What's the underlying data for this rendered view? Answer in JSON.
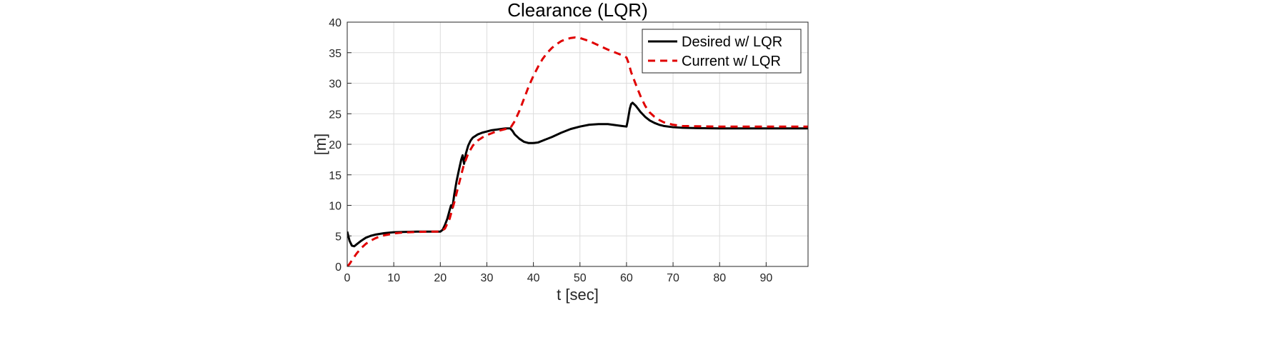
{
  "chart_data": {
    "type": "line",
    "title": "Clearance (LQR)",
    "xlabel": "t [sec]",
    "ylabel": "[m]",
    "xlim": [
      0,
      99
    ],
    "ylim": [
      0,
      40
    ],
    "x_ticks": [
      0,
      10,
      20,
      30,
      40,
      50,
      60,
      70,
      80,
      90
    ],
    "y_ticks": [
      0,
      5,
      10,
      15,
      20,
      25,
      30,
      35,
      40
    ],
    "x_tick_labels": [
      "0",
      "10",
      "20",
      "30",
      "40",
      "50",
      "60",
      "70",
      "80",
      "90"
    ],
    "y_tick_labels": [
      "0",
      "5",
      "10",
      "15",
      "20",
      "25",
      "30",
      "35",
      "40"
    ],
    "grid": true,
    "legend_position": "top-right",
    "series": [
      {
        "name": "Desired w/ LQR",
        "color": "#000000",
        "style": "solid",
        "points": [
          [
            0,
            5.7
          ],
          [
            0.5,
            4.2
          ],
          [
            1,
            3.4
          ],
          [
            1.5,
            3.3
          ],
          [
            2,
            3.6
          ],
          [
            3,
            4.2
          ],
          [
            4,
            4.7
          ],
          [
            5,
            5.0
          ],
          [
            6,
            5.2
          ],
          [
            8,
            5.45
          ],
          [
            10,
            5.6
          ],
          [
            12,
            5.65
          ],
          [
            15,
            5.7
          ],
          [
            18,
            5.7
          ],
          [
            20,
            5.7
          ],
          [
            20.5,
            6.0
          ],
          [
            21,
            6.8
          ],
          [
            21.5,
            7.8
          ],
          [
            22,
            9.2
          ],
          [
            22.3,
            10.0
          ],
          [
            22.6,
            9.6
          ],
          [
            23,
            11.8
          ],
          [
            23.5,
            14.0
          ],
          [
            24,
            15.8
          ],
          [
            24.5,
            17.5
          ],
          [
            24.8,
            18.2
          ],
          [
            25.1,
            16.8
          ],
          [
            25.5,
            18.5
          ],
          [
            26,
            19.8
          ],
          [
            26.5,
            20.6
          ],
          [
            27,
            21.1
          ],
          [
            28,
            21.6
          ],
          [
            29,
            21.9
          ],
          [
            30,
            22.1
          ],
          [
            31,
            22.3
          ],
          [
            32,
            22.4
          ],
          [
            33,
            22.5
          ],
          [
            34,
            22.6
          ],
          [
            35,
            22.6
          ],
          [
            35.5,
            22.2
          ],
          [
            36,
            21.6
          ],
          [
            37,
            20.9
          ],
          [
            38,
            20.4
          ],
          [
            39,
            20.2
          ],
          [
            40,
            20.2
          ],
          [
            41,
            20.3
          ],
          [
            42,
            20.6
          ],
          [
            44,
            21.2
          ],
          [
            46,
            21.9
          ],
          [
            48,
            22.5
          ],
          [
            50,
            22.9
          ],
          [
            52,
            23.2
          ],
          [
            54,
            23.3
          ],
          [
            56,
            23.3
          ],
          [
            58,
            23.1
          ],
          [
            59,
            23.0
          ],
          [
            60,
            22.9
          ],
          [
            60.3,
            24.0
          ],
          [
            60.7,
            25.8
          ],
          [
            61,
            26.6
          ],
          [
            61.3,
            26.8
          ],
          [
            62,
            26.3
          ],
          [
            63,
            25.3
          ],
          [
            64,
            24.5
          ],
          [
            65,
            23.9
          ],
          [
            66,
            23.5
          ],
          [
            67,
            23.2
          ],
          [
            68,
            23.0
          ],
          [
            70,
            22.8
          ],
          [
            72,
            22.7
          ],
          [
            75,
            22.65
          ],
          [
            80,
            22.6
          ],
          [
            85,
            22.6
          ],
          [
            90,
            22.6
          ],
          [
            95,
            22.6
          ],
          [
            99,
            22.6
          ]
        ]
      },
      {
        "name": "Current w/ LQR",
        "color": "#e00000",
        "style": "dashed",
        "points": [
          [
            0,
            0.0
          ],
          [
            0.5,
            0.4
          ],
          [
            1,
            1.0
          ],
          [
            2,
            2.1
          ],
          [
            3,
            3.0
          ],
          [
            4,
            3.7
          ],
          [
            5,
            4.2
          ],
          [
            6,
            4.6
          ],
          [
            7,
            4.9
          ],
          [
            8,
            5.1
          ],
          [
            10,
            5.4
          ],
          [
            12,
            5.55
          ],
          [
            15,
            5.65
          ],
          [
            18,
            5.7
          ],
          [
            20,
            5.7
          ],
          [
            21,
            6.2
          ],
          [
            22,
            7.8
          ],
          [
            23,
            10.5
          ],
          [
            24,
            13.5
          ],
          [
            25,
            16.5
          ],
          [
            26,
            18.5
          ],
          [
            27,
            19.8
          ],
          [
            28,
            20.6
          ],
          [
            29,
            21.1
          ],
          [
            30,
            21.5
          ],
          [
            31,
            21.8
          ],
          [
            32,
            22.1
          ],
          [
            33,
            22.3
          ],
          [
            34,
            22.5
          ],
          [
            35,
            22.6
          ],
          [
            36,
            23.8
          ],
          [
            37,
            25.5
          ],
          [
            38,
            27.5
          ],
          [
            39,
            29.5
          ],
          [
            40,
            31.2
          ],
          [
            41,
            32.7
          ],
          [
            42,
            34.0
          ],
          [
            43,
            35.0
          ],
          [
            44,
            35.8
          ],
          [
            45,
            36.4
          ],
          [
            46,
            36.9
          ],
          [
            47,
            37.2
          ],
          [
            48,
            37.4
          ],
          [
            49,
            37.5
          ],
          [
            50,
            37.4
          ],
          [
            52,
            36.9
          ],
          [
            54,
            36.2
          ],
          [
            56,
            35.5
          ],
          [
            58,
            34.9
          ],
          [
            59,
            34.6
          ],
          [
            60,
            34.2
          ],
          [
            60.5,
            33.2
          ],
          [
            61,
            31.8
          ],
          [
            62,
            29.8
          ],
          [
            63,
            27.9
          ],
          [
            64,
            26.3
          ],
          [
            65,
            25.2
          ],
          [
            66,
            24.5
          ],
          [
            67,
            24.0
          ],
          [
            68,
            23.6
          ],
          [
            69,
            23.4
          ],
          [
            70,
            23.2
          ],
          [
            72,
            23.0
          ],
          [
            75,
            22.95
          ],
          [
            80,
            22.9
          ],
          [
            85,
            22.9
          ],
          [
            90,
            22.9
          ],
          [
            95,
            22.9
          ],
          [
            99,
            22.9
          ]
        ]
      }
    ]
  }
}
